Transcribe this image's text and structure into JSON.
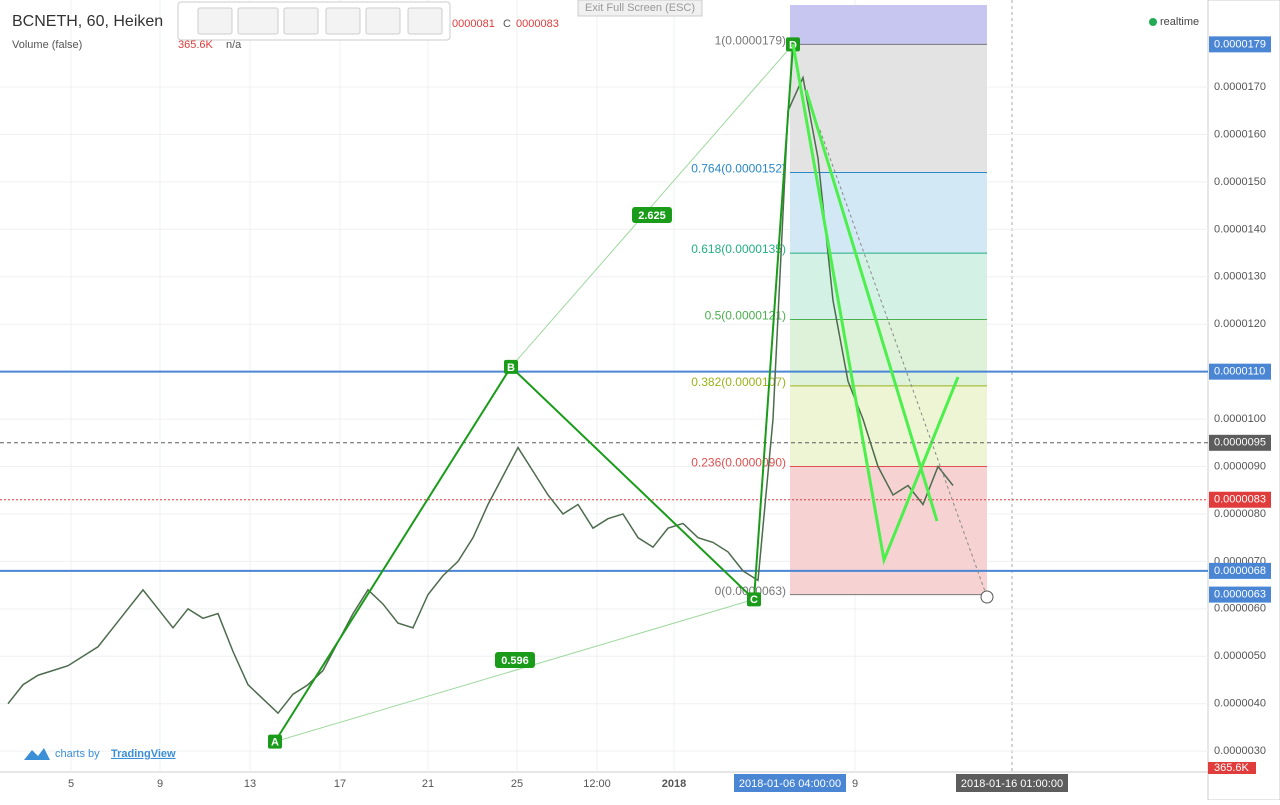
{
  "header": {
    "symbol": "BCNETH, 60, Heiken",
    "volume": "Volume (false)",
    "volume_value": "365.6K",
    "volume_na": "n/a",
    "ohlc_fragment": "0000081",
    "close_label": "C",
    "close_value": "0000083"
  },
  "exit_fullscreen": "Exit Full Screen (ESC)",
  "status": "realtime",
  "branding": {
    "prefix": "charts by",
    "name": "TradingView"
  },
  "chart_data": {
    "type": "line",
    "color": "#4d6b4d",
    "values": [
      4e-06,
      4.4e-06,
      4.6e-06,
      4.7e-06,
      4.8e-06,
      5e-06,
      5.2e-06,
      5.6e-06,
      6e-06,
      6.4e-06,
      6e-06,
      5.6e-06,
      6e-06,
      5.8e-06,
      5.9e-06,
      5.1e-06,
      4.4e-06,
      4.1e-06,
      3.8e-06,
      4.2e-06,
      4.4e-06,
      4.7e-06,
      5.3e-06,
      5.9e-06,
      6.4e-06,
      6.1e-06,
      5.7e-06,
      5.6e-06,
      6.3e-06,
      6.7e-06,
      7e-06,
      7.5e-06,
      8.2e-06,
      8.8e-06,
      9.4e-06,
      8.9e-06,
      8.4e-06,
      8e-06,
      8.2e-06,
      7.7e-06,
      7.9e-06,
      8e-06,
      7.5e-06,
      7.3e-06,
      7.7e-06,
      7.8e-06,
      7.5e-06,
      7.4e-06,
      7.2e-06,
      6.8e-06,
      6.6e-06,
      1e-05,
      1.65e-05,
      1.72e-05,
      1.55e-05,
      1.25e-05,
      1.08e-05,
      1e-05,
      9e-06,
      8.4e-06,
      8.6e-06,
      8.2e-06,
      9e-06,
      8.6e-06
    ],
    "ylim": [
      2.56e-06,
      1.873e-05
    ],
    "yticks": [
      {
        "value": 3e-06,
        "label": "0.0000030"
      },
      {
        "value": 4e-06,
        "label": "0.0000040"
      },
      {
        "value": 5e-06,
        "label": "0.0000050"
      },
      {
        "value": 6e-06,
        "label": "0.0000060"
      },
      {
        "value": 7e-06,
        "label": "0.0000070"
      },
      {
        "value": 8e-06,
        "label": "0.0000080"
      },
      {
        "value": 9e-06,
        "label": "0.0000090"
      },
      {
        "value": 1e-05,
        "label": "0.0000100"
      },
      {
        "value": 1.1e-05,
        "label": "0.0000110"
      },
      {
        "value": 1.2e-05,
        "label": "0.0000120"
      },
      {
        "value": 1.3e-05,
        "label": "0.0000130"
      },
      {
        "value": 1.4e-05,
        "label": "0.0000140"
      },
      {
        "value": 1.5e-05,
        "label": "0.0000150"
      },
      {
        "value": 1.6e-05,
        "label": "0.0000160"
      },
      {
        "value": 1.7e-05,
        "label": "0.0000170"
      }
    ],
    "xtick_labels": [
      "5",
      "9",
      "13",
      "17",
      "21",
      "25",
      "12:00",
      "2018",
      "9"
    ],
    "cursor_labels": [
      "2018-01-06 04:00:00",
      "2018-01-16 01:00:00"
    ],
    "price_markers": [
      {
        "value": 1.79e-05,
        "label": "0.0000179",
        "color": "#4a86d4",
        "line": "none"
      },
      {
        "value": 1.1e-05,
        "label": "0.0000110",
        "color": "#4a86d4",
        "line": "solid"
      },
      {
        "value": 9.5e-06,
        "label": "0.0000095",
        "color": "#5d5d5d",
        "line": "dashed"
      },
      {
        "value": 8.3e-06,
        "label": "0.0000083",
        "color": "#e03c3c",
        "line": "dotted"
      },
      {
        "value": 6.8e-06,
        "label": "0.0000068",
        "color": "#4a86d4",
        "line": "solid"
      },
      {
        "value": 6.3e-06,
        "label": "0.0000063",
        "color": "#4a86d4",
        "line": "none"
      }
    ],
    "fib_levels": [
      {
        "label": "1(0.0000179)",
        "price": 1.79e-05,
        "color": "#787878",
        "zone": "#e3e3e3"
      },
      {
        "label": "0.764(0.0000152)",
        "price": 1.52e-05,
        "color": "#2a88c8",
        "zone": "#d2e8f5"
      },
      {
        "label": "0.618(0.0000135)",
        "price": 1.35e-05,
        "color": "#22b080",
        "zone": "#d3f1e4"
      },
      {
        "label": "0.5(0.0000121)",
        "price": 1.21e-05,
        "color": "#4caf50",
        "zone": "#def1d9"
      },
      {
        "label": "0.382(0.0000107)",
        "price": 1.07e-05,
        "color": "#9ab31a",
        "zone": "#eef5d5"
      },
      {
        "label": "0.236(0.0000090)",
        "price": 9e-06,
        "color": "#e05050",
        "zone": "#f6d2d2"
      },
      {
        "label": "0(0.0000063)",
        "price": 6.3e-06,
        "color": "#787878"
      }
    ],
    "pattern": {
      "points": [
        {
          "label": "A",
          "price": 3.2e-06
        },
        {
          "label": "B",
          "price": 1.11e-05
        },
        {
          "label": "C",
          "price": 6.2e-06
        },
        {
          "label": "D",
          "price": 1.79e-05
        }
      ],
      "ratios": [
        "2.625",
        "0.596"
      ],
      "color": "#1a9c1a"
    }
  }
}
